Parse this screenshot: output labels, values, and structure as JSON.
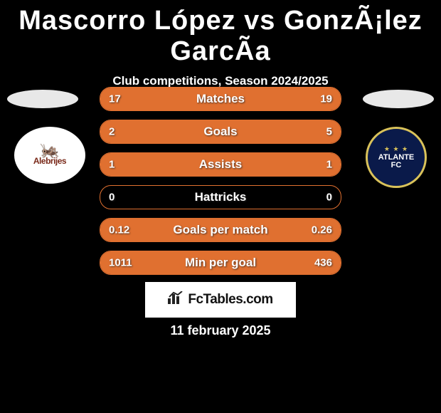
{
  "title": "Mascorro López vs GonzÃ¡lez GarcÃa",
  "subtitle": "Club competitions, Season 2024/2025",
  "colors": {
    "background": "#000000",
    "accent": "#e07030",
    "text": "#ffffff",
    "logo_bg": "#ffffff",
    "logo_text": "#111111"
  },
  "crest_left": {
    "label": "Alebrijes"
  },
  "crest_right": {
    "label": "ATLANTE",
    "sub": "FC"
  },
  "stats": [
    {
      "label": "Matches",
      "left_val": "17",
      "right_val": "19",
      "left_fill_pct": 47,
      "right_fill_pct": 53
    },
    {
      "label": "Goals",
      "left_val": "2",
      "right_val": "5",
      "left_fill_pct": 29,
      "right_fill_pct": 71
    },
    {
      "label": "Assists",
      "left_val": "1",
      "right_val": "1",
      "left_fill_pct": 50,
      "right_fill_pct": 50
    },
    {
      "label": "Hattricks",
      "left_val": "0",
      "right_val": "0",
      "left_fill_pct": 0,
      "right_fill_pct": 0
    },
    {
      "label": "Goals per match",
      "left_val": "0.12",
      "right_val": "0.26",
      "left_fill_pct": 32,
      "right_fill_pct": 68
    },
    {
      "label": "Min per goal",
      "left_val": "1011",
      "right_val": "436",
      "left_fill_pct": 70,
      "right_fill_pct": 30
    }
  ],
  "footer_logo_text": "FcTables.com",
  "date_text": "11 february 2025"
}
